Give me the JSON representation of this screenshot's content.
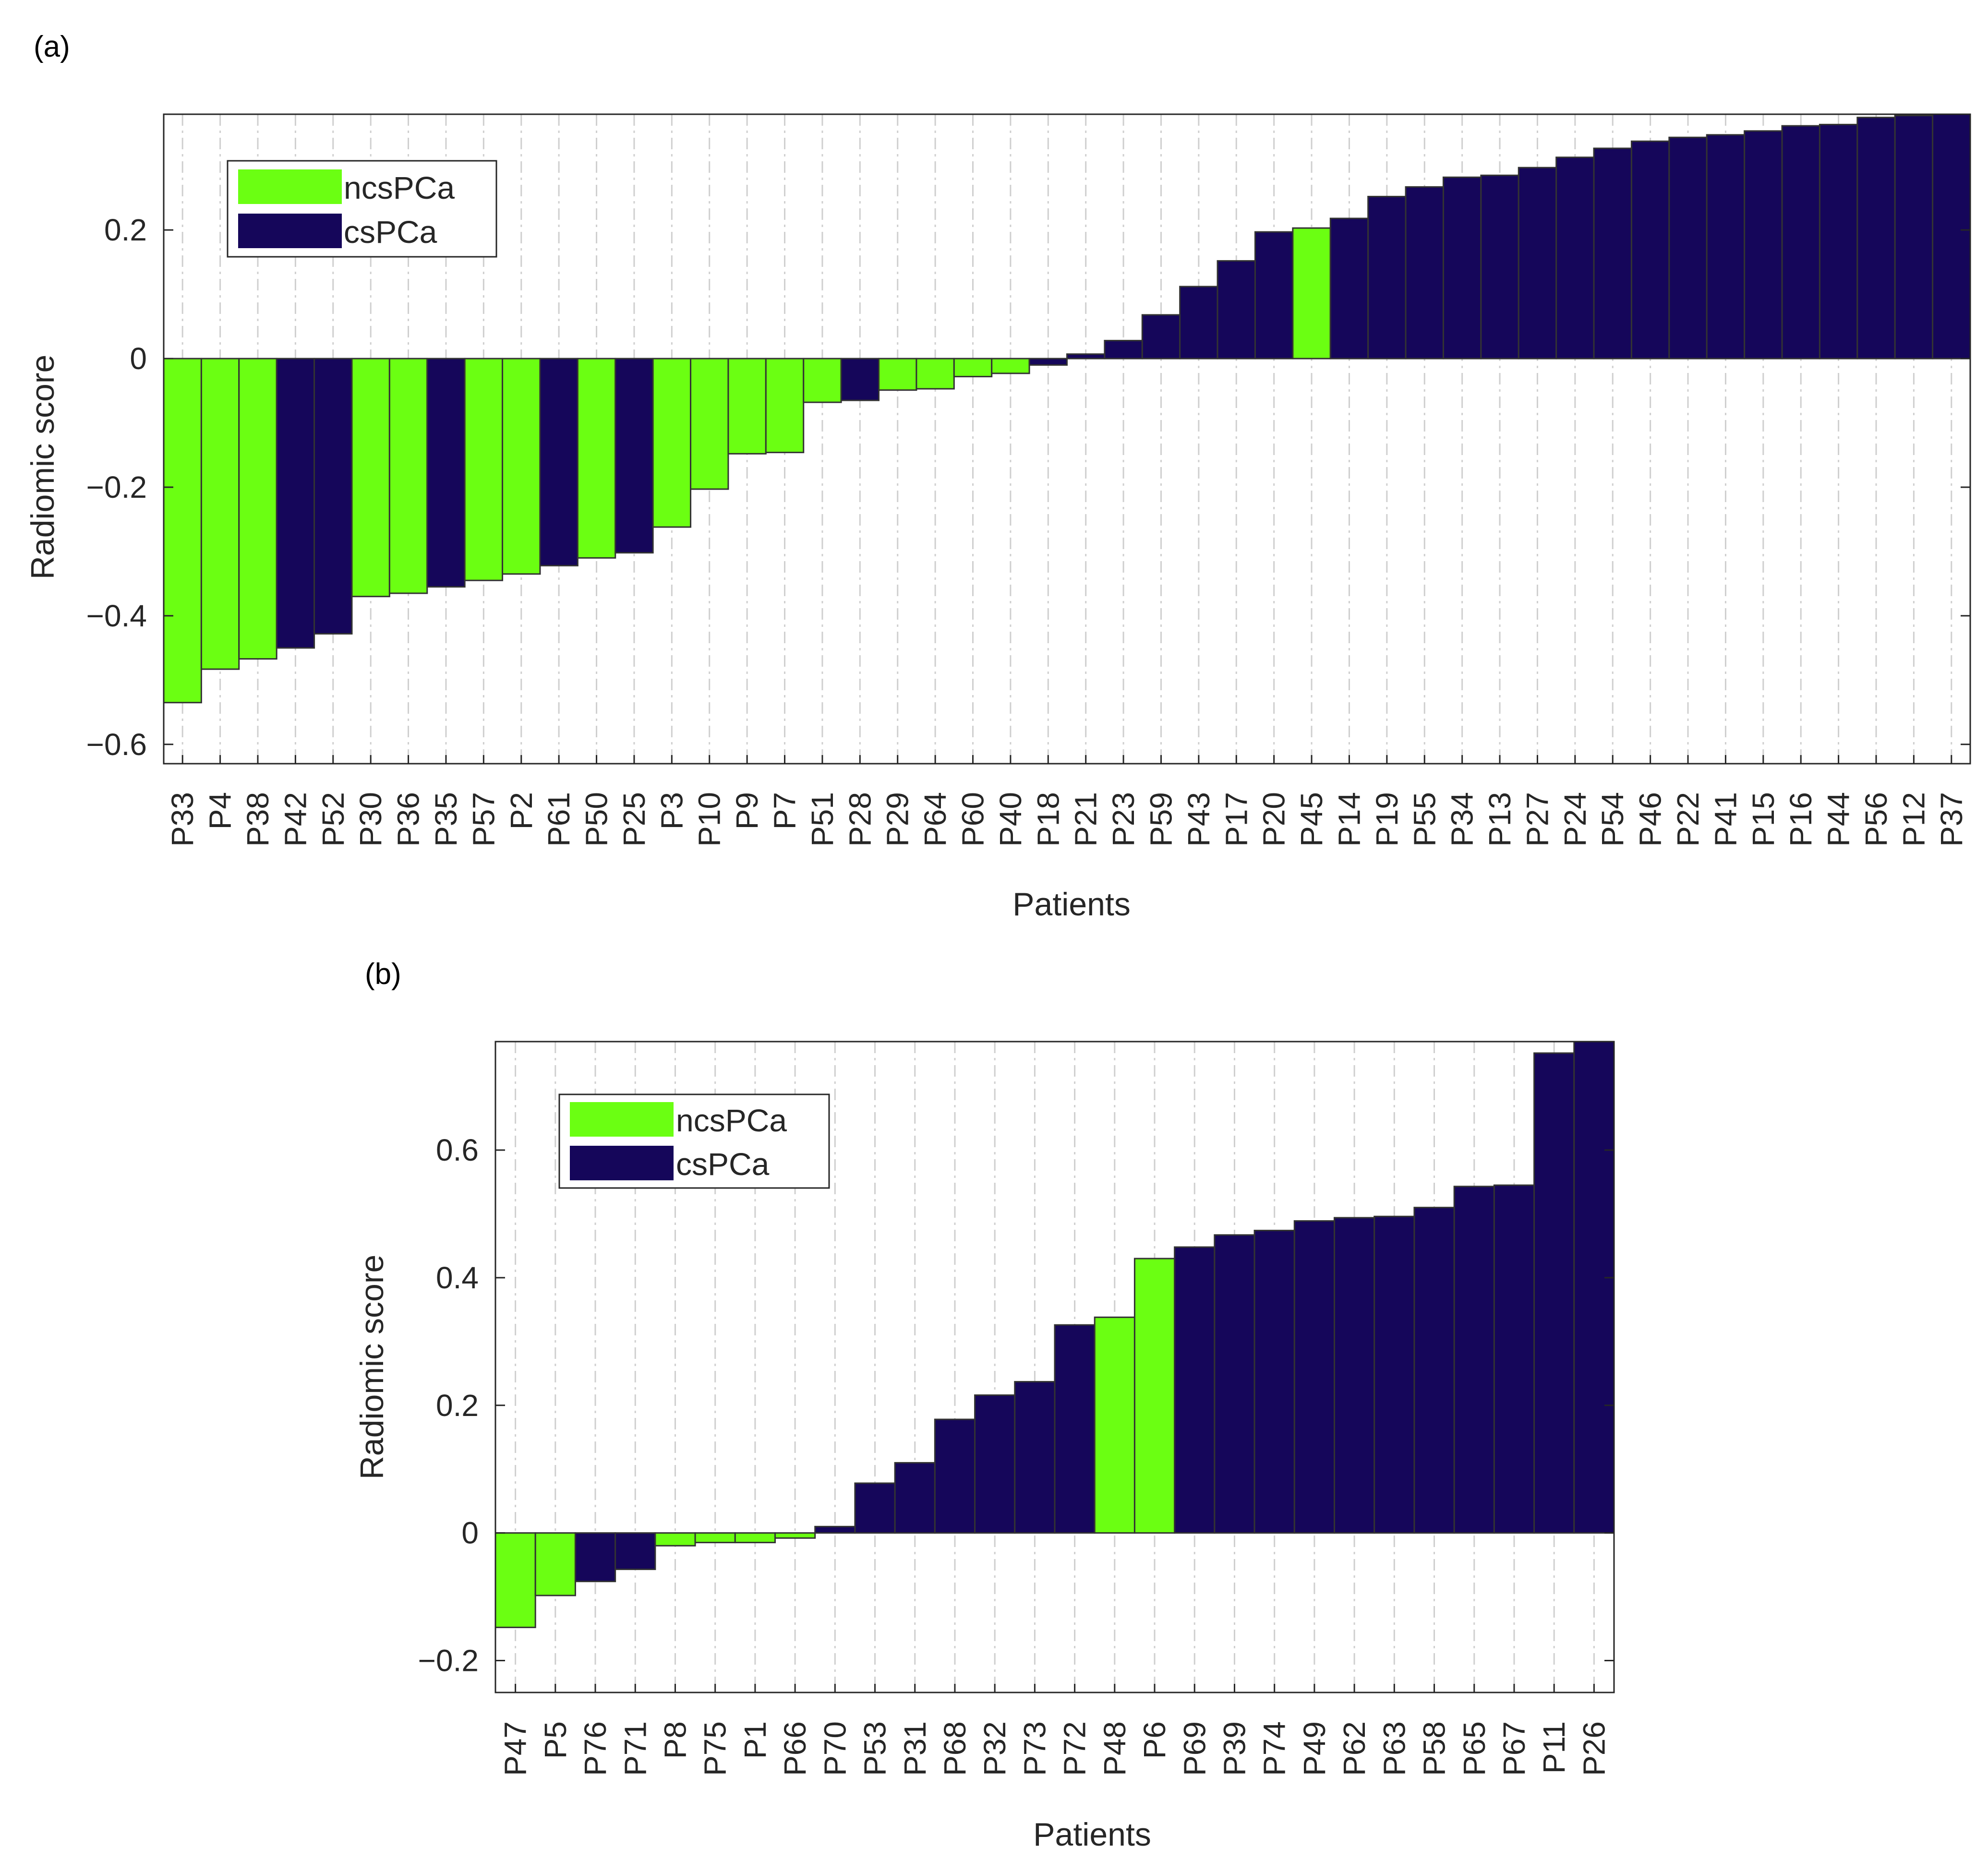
{
  "chart_data": [
    {
      "type": "bar",
      "panel_label": "(a)",
      "xlabel": "Patients",
      "ylabel": "Radiomic score",
      "ylim": [
        -0.63,
        0.38
      ],
      "yticks": [
        0.2,
        0,
        -0.2,
        -0.4,
        -0.6
      ],
      "ytick_labels": [
        "0.2",
        "0",
        "−0.2",
        "−0.4",
        "−0.6"
      ],
      "grid": "x-dashed",
      "legend": {
        "position": "top-left",
        "entries": [
          {
            "label": "ncsPCa",
            "class": "ncs"
          },
          {
            "label": "csPCa",
            "class": "cs"
          }
        ]
      },
      "categories": [
        "P33",
        "P4",
        "P38",
        "P42",
        "P52",
        "P30",
        "P36",
        "P35",
        "P57",
        "P2",
        "P61",
        "P50",
        "P25",
        "P3",
        "P10",
        "P9",
        "P7",
        "P51",
        "P28",
        "P29",
        "P64",
        "P60",
        "P40",
        "P18",
        "P21",
        "P23",
        "P59",
        "P43",
        "P17",
        "P20",
        "P45",
        "P14",
        "P19",
        "P55",
        "P34",
        "P13",
        "P27",
        "P24",
        "P54",
        "P46",
        "P22",
        "P41",
        "P15",
        "P16",
        "P44",
        "P56",
        "P12",
        "P37"
      ],
      "values": [
        -0.535,
        -0.483,
        -0.467,
        -0.45,
        -0.428,
        -0.37,
        -0.365,
        -0.355,
        -0.345,
        -0.335,
        -0.322,
        -0.31,
        -0.302,
        -0.262,
        -0.203,
        -0.148,
        -0.146,
        -0.068,
        -0.065,
        -0.049,
        -0.047,
        -0.028,
        -0.023,
        -0.01,
        0.007,
        0.028,
        0.068,
        0.112,
        0.152,
        0.197,
        0.203,
        0.218,
        0.252,
        0.267,
        0.282,
        0.285,
        0.297,
        0.313,
        0.327,
        0.338,
        0.344,
        0.348,
        0.354,
        0.362,
        0.364,
        0.375,
        0.378,
        0.38
      ],
      "classes": [
        "ncs",
        "ncs",
        "ncs",
        "cs",
        "cs",
        "ncs",
        "ncs",
        "cs",
        "ncs",
        "ncs",
        "cs",
        "ncs",
        "cs",
        "ncs",
        "ncs",
        "ncs",
        "ncs",
        "ncs",
        "cs",
        "ncs",
        "ncs",
        "ncs",
        "ncs",
        "cs",
        "cs",
        "cs",
        "cs",
        "cs",
        "cs",
        "cs",
        "ncs",
        "cs",
        "cs",
        "cs",
        "cs",
        "cs",
        "cs",
        "cs",
        "cs",
        "cs",
        "cs",
        "cs",
        "cs",
        "cs",
        "cs",
        "cs",
        "cs",
        "cs"
      ]
    },
    {
      "type": "bar",
      "panel_label": "(b)",
      "xlabel": "Patients",
      "ylabel": "Radiomic score",
      "ylim": [
        -0.25,
        0.77
      ],
      "yticks": [
        0.6,
        0.4,
        0.2,
        0,
        -0.2
      ],
      "ytick_labels": [
        "0.6",
        "0.4",
        "0.2",
        "0",
        "−0.2"
      ],
      "grid": "x-dashed",
      "legend": {
        "position": "top-left",
        "entries": [
          {
            "label": "ncsPCa",
            "class": "ncs"
          },
          {
            "label": "csPCa",
            "class": "cs"
          }
        ]
      },
      "categories": [
        "P47",
        "P5",
        "P76",
        "P71",
        "P8",
        "P75",
        "P1",
        "P66",
        "P70",
        "P53",
        "P31",
        "P68",
        "P32",
        "P73",
        "P72",
        "P48",
        "P6",
        "P69",
        "P39",
        "P74",
        "P49",
        "P62",
        "P63",
        "P58",
        "P65",
        "P67",
        "P11",
        "P26"
      ],
      "values": [
        -0.148,
        -0.098,
        -0.076,
        -0.057,
        -0.02,
        -0.015,
        -0.015,
        -0.008,
        0.01,
        0.078,
        0.11,
        0.178,
        0.216,
        0.237,
        0.326,
        0.338,
        0.43,
        0.448,
        0.467,
        0.474,
        0.489,
        0.494,
        0.496,
        0.51,
        0.543,
        0.545,
        0.752,
        0.77
      ],
      "classes": [
        "ncs",
        "ncs",
        "cs",
        "cs",
        "ncs",
        "ncs",
        "ncs",
        "ncs",
        "cs",
        "cs",
        "cs",
        "cs",
        "cs",
        "cs",
        "cs",
        "ncs",
        "ncs",
        "cs",
        "cs",
        "cs",
        "cs",
        "cs",
        "cs",
        "cs",
        "cs",
        "cs",
        "cs",
        "cs"
      ]
    }
  ],
  "colors": {
    "ncs": "#6bff12",
    "cs": "#15065a",
    "axis": "#262626",
    "grid": "#cfcfcf"
  }
}
